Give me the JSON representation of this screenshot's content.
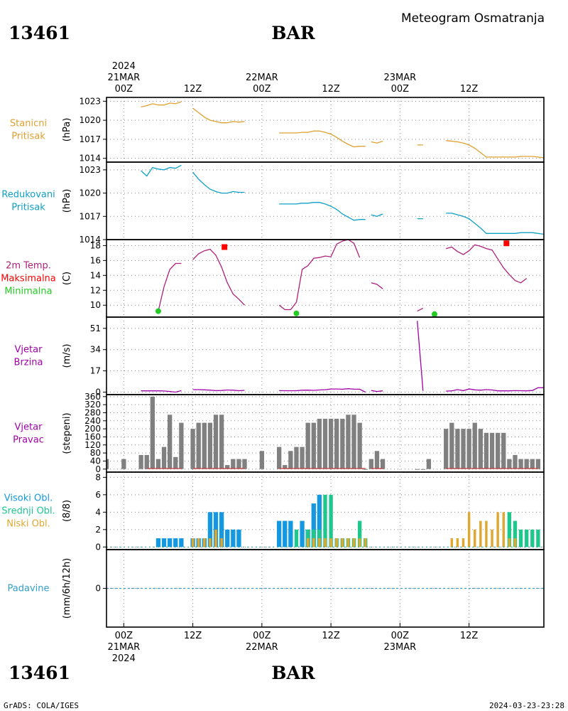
{
  "header": {
    "station_id": "13461",
    "station_name": "BAR",
    "product": "Meteogram Osmatranja"
  },
  "time_axis": {
    "top_labels": [
      {
        "h": 0,
        "lines": [
          "2024",
          "21MAR",
          "00Z"
        ]
      },
      {
        "h": 12,
        "lines": [
          "12Z"
        ]
      },
      {
        "h": 24,
        "lines": [
          "22MAR",
          "00Z"
        ]
      },
      {
        "h": 36,
        "lines": [
          "12Z"
        ]
      },
      {
        "h": 48,
        "lines": [
          "23MAR",
          "00Z"
        ]
      },
      {
        "h": 60,
        "lines": [
          "12Z"
        ]
      }
    ],
    "bottom_labels": [
      {
        "h": 0,
        "lines": [
          "00Z",
          "21MAR",
          "2024"
        ]
      },
      {
        "h": 12,
        "lines": [
          "12Z"
        ]
      },
      {
        "h": 24,
        "lines": [
          "00Z",
          "22MAR"
        ]
      },
      {
        "h": 36,
        "lines": [
          "12Z"
        ]
      },
      {
        "h": 48,
        "lines": [
          "00Z",
          "23MAR"
        ]
      },
      {
        "h": 60,
        "lines": [
          "12Z"
        ]
      }
    ]
  },
  "colors": {
    "station_pressure": "#e0a030",
    "reduced_pressure": "#10a0c8",
    "temperature": "#b0207a",
    "tmax": "#ff0000",
    "tmin": "#22cc22",
    "wind": "#a000a8",
    "wind_dir": "#808080",
    "high_cloud": "#1498e0",
    "mid_cloud": "#1ec88c",
    "low_cloud": "#e0a830",
    "precip": "#30a0c8",
    "dir_baseline": "#c84040"
  },
  "footer": {
    "left": "GrADS: COLA/IGES",
    "right": "2024-03-23-23:28"
  },
  "chart_data": [
    {
      "id": "station_pressure",
      "type": "line",
      "side_label": [
        "Stanicni",
        "Pritisak"
      ],
      "ylabel": "(hPa)",
      "yticks": [
        1014,
        1017,
        1020,
        1023
      ],
      "ylim": [
        1013.4,
        1023.6
      ],
      "series": [
        {
          "x": [
            3,
            4,
            5,
            6,
            7,
            8,
            9,
            10,
            null,
            12,
            13,
            14,
            15,
            16,
            17,
            18,
            19,
            20,
            21,
            null,
            27,
            28,
            29,
            30,
            31,
            32,
            33,
            34,
            35,
            36,
            37,
            38,
            39,
            40,
            41,
            42,
            null,
            43,
            44,
            45,
            null,
            51,
            52,
            null,
            56,
            57,
            58,
            59,
            60,
            61,
            62,
            63,
            64,
            65,
            66,
            67,
            68,
            69,
            70,
            71,
            72,
            73
          ],
          "y": [
            1022.1,
            1022.3,
            1022.6,
            1022.4,
            1022.4,
            1022.7,
            1022.6,
            1022.9,
            null,
            1021.9,
            1021.2,
            1020.5,
            1020,
            1019.8,
            1019.6,
            1019.6,
            1019.8,
            1019.7,
            1019.8,
            null,
            1018,
            1018,
            1018,
            1018,
            1018.1,
            1018.1,
            1018.3,
            1018.3,
            1018.1,
            1017.8,
            1017.3,
            1016.7,
            1016.2,
            1015.8,
            1015.9,
            1015.9,
            null,
            1016.6,
            1016.4,
            1016.7,
            null,
            1016.1,
            1016.1,
            null,
            1016.8,
            1016.7,
            1016.6,
            1016.4,
            1016.1,
            1015.6,
            1014.9,
            1014.2,
            1014.2,
            1014.2,
            1014.2,
            1014.2,
            1014.2,
            1014.3,
            1014.3,
            1014.3,
            1014.2,
            1014.1
          ]
        }
      ]
    },
    {
      "id": "reduced_pressure",
      "type": "line",
      "side_label": [
        "Redukovani",
        "Pritisak"
      ],
      "ylabel": "(hPa)",
      "yticks": [
        1014,
        1017,
        1020,
        1023
      ],
      "ylim": [
        1014,
        1024
      ],
      "series": [
        {
          "x": [
            3,
            4,
            5,
            6,
            7,
            8,
            9,
            10,
            null,
            12,
            13,
            14,
            15,
            16,
            17,
            18,
            19,
            20,
            21,
            null,
            27,
            28,
            29,
            30,
            31,
            32,
            33,
            34,
            35,
            36,
            37,
            38,
            39,
            40,
            41,
            42,
            null,
            43,
            44,
            45,
            null,
            51,
            52,
            null,
            56,
            57,
            58,
            59,
            60,
            61,
            62,
            63,
            64,
            65,
            66,
            67,
            68,
            69,
            70,
            71,
            72,
            73
          ],
          "y": [
            1022.9,
            1022.2,
            1023.3,
            1023.1,
            1023,
            1023.3,
            1023.2,
            1023.6,
            null,
            1022.7,
            1021.8,
            1021.1,
            1020.5,
            1020.2,
            1020,
            1020,
            1020.2,
            1020.1,
            1020.1,
            null,
            1018.6,
            1018.6,
            1018.6,
            1018.6,
            1018.7,
            1018.7,
            1018.8,
            1018.8,
            1018.6,
            1018.3,
            1017.9,
            1017.3,
            1016.9,
            1016.5,
            1016.6,
            1016.6,
            null,
            1017.2,
            1017,
            1017.3,
            null,
            1016.7,
            1016.7,
            null,
            1017.4,
            1017.4,
            1017.2,
            1017,
            1016.7,
            1016.1,
            1015.5,
            1014.8,
            1014.8,
            1014.8,
            1014.8,
            1014.8,
            1014.8,
            1014.9,
            1014.9,
            1014.9,
            1014.8,
            1014.7
          ]
        }
      ]
    },
    {
      "id": "temperature",
      "type": "line",
      "side_label": [
        "2m Temp.",
        "Maksimalna",
        "Minimalna"
      ],
      "ylabel": "(C)",
      "yticks": [
        10,
        12,
        14,
        16,
        18
      ],
      "ylim": [
        8.4,
        18.8
      ],
      "series": [
        {
          "x": [
            6,
            7,
            8,
            9,
            10,
            null,
            12,
            13,
            14,
            15,
            16,
            17,
            18,
            19,
            20,
            21,
            null,
            27,
            28,
            29,
            30,
            31,
            32,
            33,
            34,
            35,
            36,
            37,
            38,
            39,
            40,
            41,
            42,
            null,
            43,
            44,
            45,
            null,
            51,
            52,
            null,
            56,
            57,
            58,
            59,
            60,
            61,
            62,
            63,
            64,
            65,
            66,
            67,
            68,
            69,
            70,
            71,
            72,
            73
          ],
          "y": [
            9.2,
            12.5,
            14.8,
            15.6,
            15.6,
            null,
            16.1,
            16.9,
            17.3,
            17.5,
            16.7,
            15.1,
            13,
            11.5,
            10.8,
            10,
            null,
            10,
            9.4,
            9.4,
            10.4,
            14.8,
            15.3,
            16.3,
            16.4,
            16.6,
            16.5,
            18.2,
            18.6,
            18.8,
            18.3,
            16.4,
            null,
            null,
            13,
            12.8,
            12.2,
            null,
            9.2,
            9.6,
            null,
            17.6,
            17.8,
            17.2,
            16.8,
            17.3,
            18.1,
            17.9,
            17.6,
            17.4,
            16.2,
            15,
            14.1,
            13.3,
            13,
            13.6,
            null,
            null,
            null
          ]
        }
      ],
      "tmax_points": [
        {
          "x": 17.5,
          "y": 17.8
        },
        {
          "x": 66.5,
          "y": 18.3
        }
      ],
      "tmin_points": [
        {
          "x": 6,
          "y": 9.2
        },
        {
          "x": 30,
          "y": 8.9
        },
        {
          "x": 54,
          "y": 8.8
        }
      ]
    },
    {
      "id": "wind_speed",
      "type": "line",
      "side_label": [
        "Vjetar",
        "Brzina"
      ],
      "ylabel": "(m/s)",
      "yticks": [
        0,
        17,
        34,
        51
      ],
      "ylim": [
        -2,
        60
      ],
      "series": [
        {
          "x": [
            3,
            4,
            5,
            6,
            7,
            8,
            9,
            10,
            null,
            12,
            13,
            14,
            15,
            16,
            17,
            18,
            19,
            20,
            21,
            null,
            27,
            28,
            29,
            30,
            31,
            32,
            33,
            34,
            35,
            36,
            37,
            38,
            39,
            40,
            41,
            42,
            null,
            43,
            44,
            45,
            null,
            51,
            52,
            null,
            53,
            54,
            null,
            56,
            57,
            58,
            59,
            60,
            61,
            62,
            63,
            64,
            65,
            66,
            67,
            68,
            69,
            70,
            71,
            72,
            73
          ],
          "y": [
            1,
            1,
            1,
            1,
            0.9,
            0.5,
            0,
            1.2,
            null,
            2,
            2,
            1.8,
            1.6,
            1.2,
            1.3,
            1.7,
            1.5,
            1.1,
            1.4,
            null,
            1.2,
            1.1,
            1.1,
            1.1,
            1.5,
            1.6,
            1.4,
            1.7,
            1.9,
            2.5,
            2.5,
            2.3,
            2.7,
            2.3,
            2.3,
            0,
            null,
            1.3,
            0.5,
            1,
            null,
            57,
            1,
            null,
            null,
            null,
            null,
            0.8,
            1,
            2,
            1.2,
            2.5,
            1.8,
            1.5,
            2,
            1.7,
            1,
            1,
            1,
            1.2,
            1.1,
            1,
            1.3,
            3.5,
            3.5
          ]
        }
      ]
    },
    {
      "id": "wind_dir",
      "type": "bar",
      "side_label": [
        "Vjetar",
        "Pravac"
      ],
      "ylabel": "(stepeni)",
      "yticks": [
        0,
        40,
        80,
        120,
        160,
        200,
        240,
        280,
        320,
        360
      ],
      "ylim": [
        -15,
        370
      ],
      "x": [
        -3,
        0,
        3,
        4,
        5,
        6,
        7,
        8,
        9,
        10,
        12,
        13,
        14,
        15,
        16,
        17,
        18,
        19,
        20,
        21,
        24,
        27,
        28,
        29,
        30,
        31,
        32,
        33,
        34,
        35,
        36,
        37,
        38,
        39,
        40,
        41,
        42,
        43,
        44,
        45,
        51,
        52,
        53,
        56,
        57,
        58,
        59,
        60,
        61,
        62,
        63,
        64,
        65,
        66,
        67,
        68,
        69,
        70,
        71,
        72
      ],
      "values": [
        50,
        50,
        70,
        70,
        360,
        50,
        110,
        270,
        60,
        230,
        200,
        230,
        230,
        230,
        270,
        270,
        20,
        50,
        50,
        50,
        90,
        110,
        20,
        90,
        110,
        110,
        230,
        230,
        250,
        250,
        250,
        250,
        250,
        270,
        270,
        230,
        0,
        50,
        90,
        50,
        0,
        0,
        50,
        200,
        230,
        200,
        200,
        200,
        230,
        200,
        180,
        180,
        180,
        180,
        50,
        70,
        50,
        50,
        50,
        50
      ]
    },
    {
      "id": "clouds",
      "type": "bar",
      "side_label": [
        "Visoki Obl.",
        "Srednji Obl.",
        "Niski Obl."
      ],
      "ylabel": "(8/8)",
      "yticks": [
        0,
        2,
        4,
        6,
        8
      ],
      "ylim": [
        -0.3,
        8.6
      ],
      "series": [
        {
          "name": "Visoki Obl.",
          "x": [
            6,
            7,
            8,
            9,
            10,
            12,
            13,
            14,
            15,
            16,
            17,
            18,
            19,
            20,
            27,
            28,
            29,
            30,
            31,
            32,
            33,
            34,
            35,
            36,
            37,
            38,
            39,
            40,
            41,
            42
          ],
          "values": [
            1,
            1,
            1,
            1,
            1,
            1,
            1,
            1,
            4,
            4,
            4,
            2,
            2,
            2,
            3,
            3,
            3,
            0,
            3,
            2,
            5,
            6,
            0,
            0,
            0,
            0,
            0,
            0,
            0,
            0
          ]
        },
        {
          "name": "Srednji Obl.",
          "x": [
            30,
            32,
            33,
            34,
            35,
            36,
            37,
            38,
            39,
            40,
            41,
            42,
            66,
            67,
            68,
            69,
            70,
            71,
            72
          ],
          "values": [
            2,
            2,
            2,
            2,
            6,
            6,
            1,
            1,
            1,
            1,
            3,
            1,
            0,
            4,
            3,
            2,
            2,
            2,
            2
          ]
        },
        {
          "name": "Niski Obl.",
          "x": [
            12,
            13,
            14,
            15,
            16,
            17,
            18,
            19,
            20,
            27,
            28,
            29,
            30,
            31,
            32,
            33,
            34,
            35,
            36,
            37,
            38,
            39,
            40,
            41,
            42,
            56,
            57,
            58,
            59,
            60,
            61,
            62,
            63,
            64,
            65,
            66,
            67,
            68
          ],
          "values": [
            1,
            1,
            1,
            1,
            2,
            1,
            0,
            0,
            0,
            0,
            0,
            0,
            0,
            0,
            1,
            1,
            1,
            1,
            1,
            1,
            1,
            1,
            1,
            1,
            1,
            0,
            1,
            1,
            1,
            4,
            2,
            3,
            3,
            2,
            4,
            4,
            1,
            1
          ]
        }
      ]
    },
    {
      "id": "precipitation",
      "type": "line",
      "side_label": [
        "Padavine"
      ],
      "ylabel": "(mm/6h/12h)",
      "yticks": [
        0
      ],
      "ylim": [
        -1,
        1
      ],
      "series": [
        {
          "x": [
            -3,
            73
          ],
          "y": [
            0,
            0
          ]
        }
      ]
    }
  ]
}
